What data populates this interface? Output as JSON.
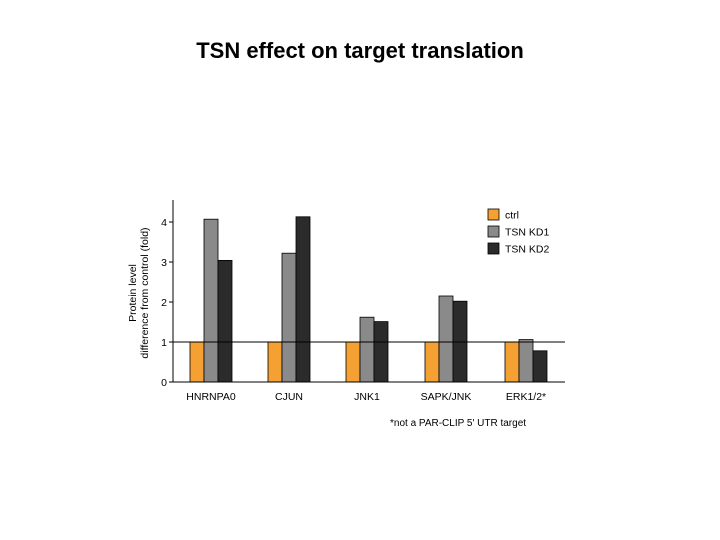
{
  "title": "TSN effect on target translation",
  "chart_data": {
    "type": "bar",
    "categories": [
      "HNRNPA0",
      "CJUN",
      "JNK1",
      "SAPK/JNK",
      "ERK1/2*"
    ],
    "series": [
      {
        "name": "ctrl",
        "values": [
          1,
          1,
          1,
          1,
          1
        ],
        "color": "#F5A033"
      },
      {
        "name": "TSN KD1",
        "values": [
          4.07,
          3.22,
          1.62,
          2.15,
          1.06
        ],
        "color": "#8A8A8A"
      },
      {
        "name": "TSN KD2",
        "values": [
          3.04,
          4.13,
          1.51,
          2.02,
          0.78
        ],
        "color": "#2B2B2B"
      }
    ],
    "ylabel_line1": "Protein level",
    "ylabel_line2": "difference from control (fold)",
    "yticks": [
      "0",
      "1",
      "2",
      "3",
      "4"
    ],
    "ylim": [
      0,
      4.5
    ],
    "reference_line": 1,
    "legend_position": "top-right",
    "grid": false,
    "note": "*not a PAR-CLIP 5' UTR target"
  }
}
